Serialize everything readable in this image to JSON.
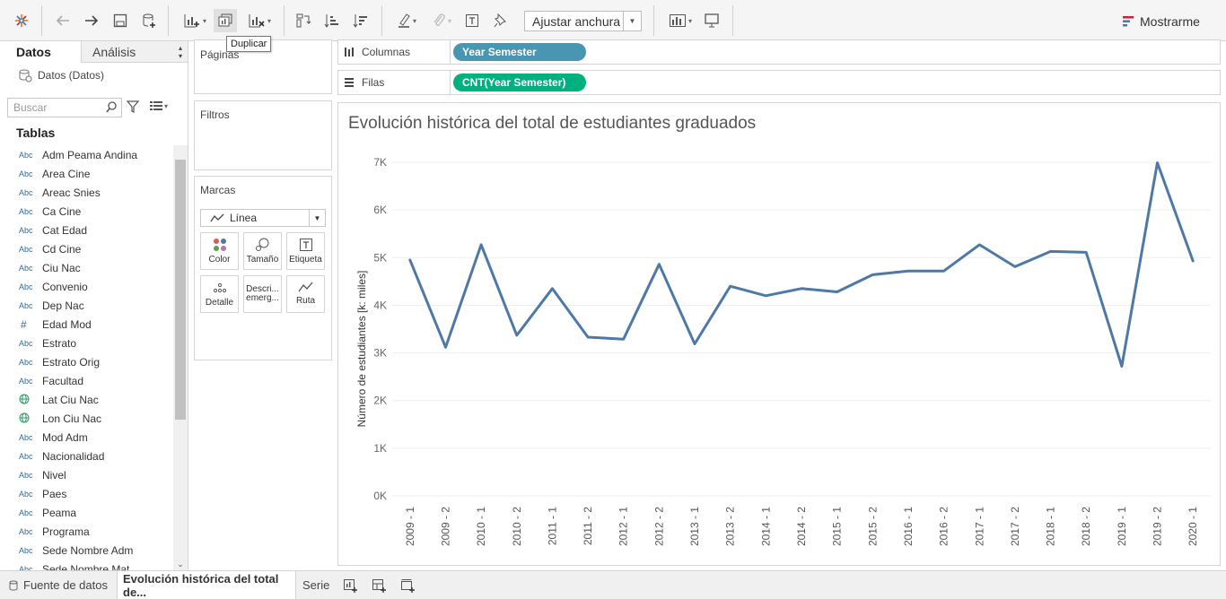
{
  "toolbar": {
    "fit_label": "Ajustar anchura",
    "show_me_label": "Mostrarme",
    "tooltip": "Duplicar"
  },
  "data_pane": {
    "tab_data": "Datos",
    "tab_analysis": "Análisis",
    "datasource": "Datos (Datos)",
    "search_placeholder": "Buscar",
    "tables_heading": "Tablas",
    "fields": [
      {
        "type": "Abc",
        "name": "Adm Peama Andina"
      },
      {
        "type": "Abc",
        "name": "Area Cine"
      },
      {
        "type": "Abc",
        "name": "Areac Snies"
      },
      {
        "type": "Abc",
        "name": "Ca Cine"
      },
      {
        "type": "Abc",
        "name": "Cat Edad"
      },
      {
        "type": "Abc",
        "name": "Cd Cine"
      },
      {
        "type": "Abc",
        "name": "Ciu Nac"
      },
      {
        "type": "Abc",
        "name": "Convenio"
      },
      {
        "type": "Abc",
        "name": "Dep Nac"
      },
      {
        "type": "#",
        "name": "Edad Mod"
      },
      {
        "type": "Abc",
        "name": "Estrato"
      },
      {
        "type": "Abc",
        "name": "Estrato Orig"
      },
      {
        "type": "Abc",
        "name": "Facultad"
      },
      {
        "type": "geo",
        "name": "Lat Ciu Nac"
      },
      {
        "type": "geo",
        "name": "Lon Ciu Nac"
      },
      {
        "type": "Abc",
        "name": "Mod Adm"
      },
      {
        "type": "Abc",
        "name": "Nacionalidad"
      },
      {
        "type": "Abc",
        "name": "Nivel"
      },
      {
        "type": "Abc",
        "name": "Paes"
      },
      {
        "type": "Abc",
        "name": "Peama"
      },
      {
        "type": "Abc",
        "name": "Programa"
      },
      {
        "type": "Abc",
        "name": "Sede Nombre Adm"
      },
      {
        "type": "Abc",
        "name": "Sede Nombre Mat"
      }
    ]
  },
  "cards": {
    "pages": "Páginas",
    "filters": "Filtros",
    "marks": "Marcas",
    "mark_type": "Línea",
    "mark_buttons": [
      "Color",
      "Tamaño",
      "Etiqueta",
      "Detalle",
      "Descri... emerg...",
      "Ruta"
    ]
  },
  "shelves": {
    "columns_label": "Columnas",
    "columns_pill": "Year Semester",
    "rows_label": "Filas",
    "rows_pill": "CNT(Year Semester)"
  },
  "colors": {
    "line": "#4e79a7",
    "columns_pill": "#4996b2",
    "rows_pill": "#00b180"
  },
  "chart_data": {
    "type": "line",
    "title": "Evolución histórica del total de estudiantes graduados",
    "ylabel": "Número de estudiantes  [k: miles]",
    "xlabel": "",
    "ylim": [
      0,
      7000
    ],
    "yticks": [
      "0K",
      "1K",
      "2K",
      "3K",
      "4K",
      "5K",
      "6K",
      "7K"
    ],
    "grid": true,
    "categories": [
      "2009 - 1",
      "2009 - 2",
      "2010 - 1",
      "2010 - 2",
      "2011 - 1",
      "2011 - 2",
      "2012 - 1",
      "2012 - 2",
      "2013 - 1",
      "2013 - 2",
      "2014 - 1",
      "2014 - 2",
      "2015 - 1",
      "2015 - 2",
      "2016 - 1",
      "2016 - 2",
      "2017 - 1",
      "2017 - 2",
      "2018 - 1",
      "2018 - 2",
      "2019 - 1",
      "2019 - 2",
      "2020 - 1"
    ],
    "values": [
      4950,
      3120,
      5270,
      3370,
      4350,
      3330,
      3290,
      4860,
      3190,
      4400,
      4200,
      4350,
      4280,
      4640,
      4720,
      4720,
      5270,
      4810,
      5130,
      5110,
      2720,
      6990,
      4930
    ]
  },
  "bottom_tabs": {
    "datasource": "Fuente de datos",
    "active_sheet": "Evolución histórica del total de...",
    "sheet2": "Serie"
  }
}
